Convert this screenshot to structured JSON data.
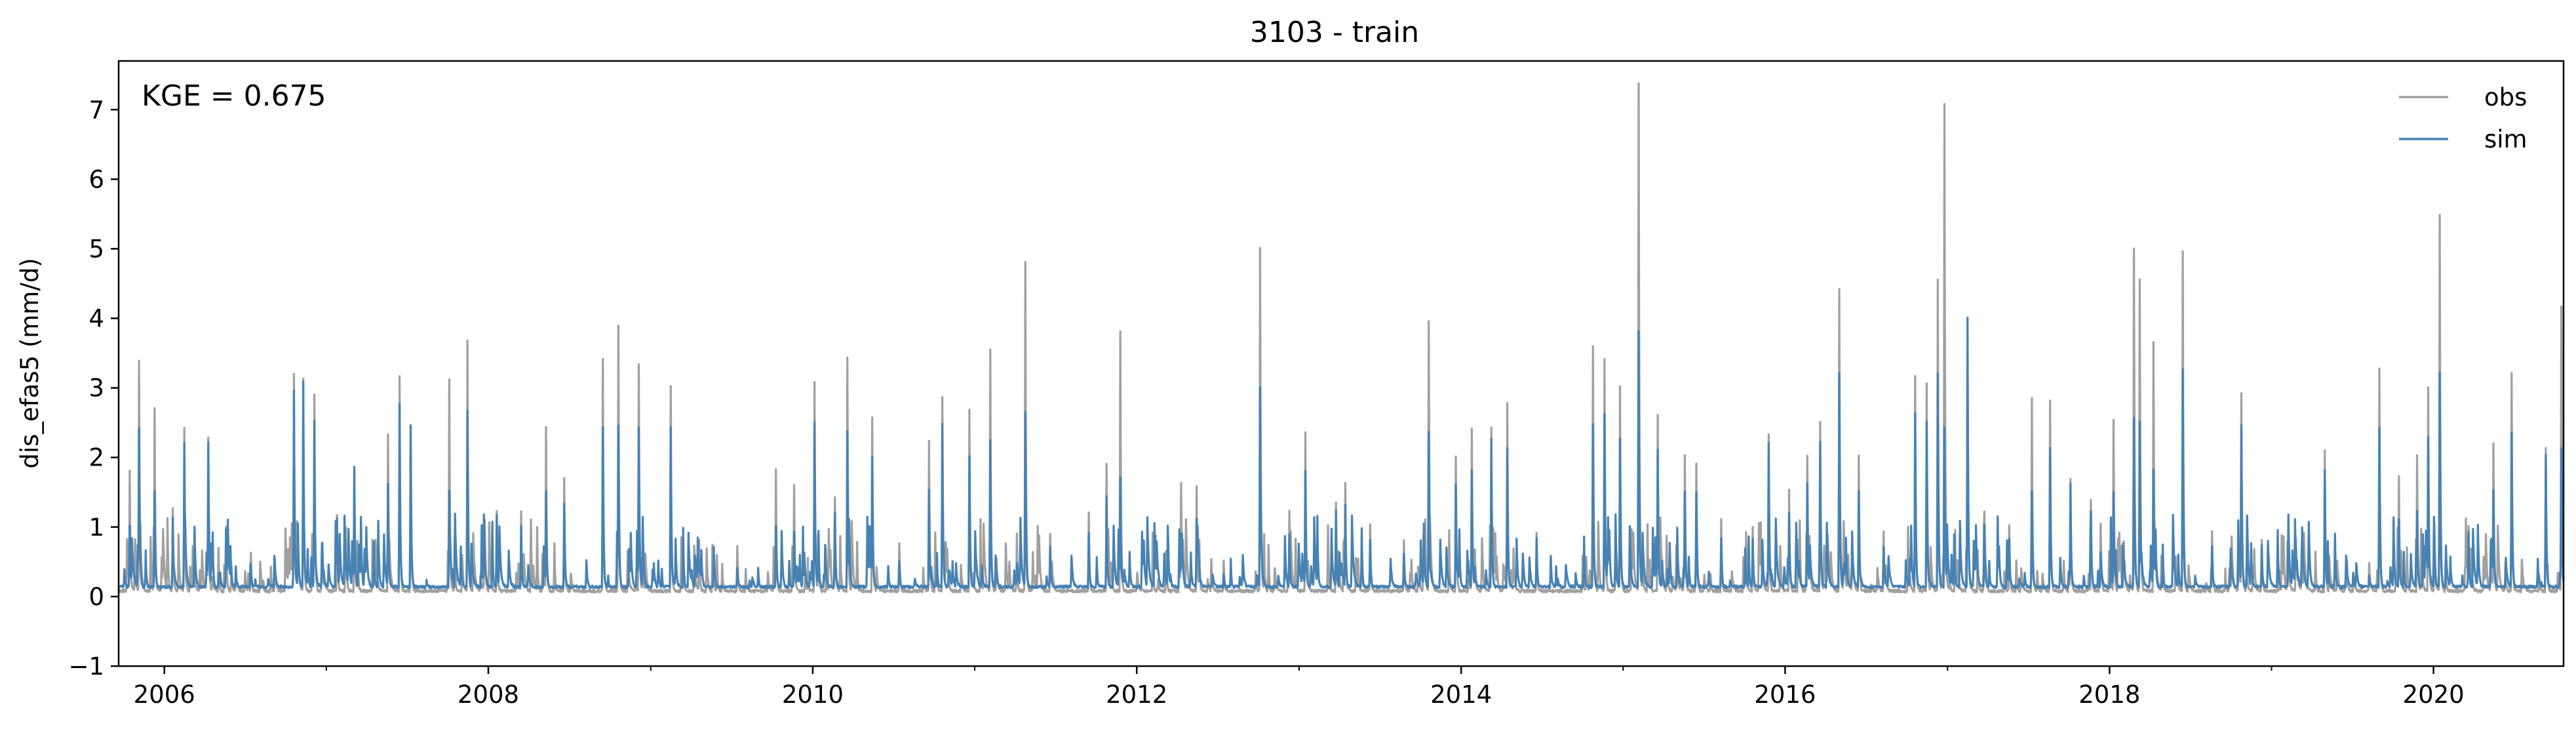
{
  "chart_data": {
    "type": "line",
    "title": "3103 - train",
    "xlabel": "",
    "ylabel": "dis_efas5 (mm/d)",
    "annotation": "KGE = 0.675",
    "xlim": [
      "2005-09-20",
      "2020-10-20"
    ],
    "ylim": [
      -1,
      7.7
    ],
    "x_ticks": [
      "2006",
      "2008",
      "2010",
      "2012",
      "2014",
      "2016",
      "2018",
      "2020"
    ],
    "y_ticks": [
      "−1",
      "0",
      "1",
      "2",
      "3",
      "4",
      "5",
      "6",
      "7"
    ],
    "legend": {
      "position": "top-right",
      "entries": [
        "obs",
        "sim"
      ]
    },
    "grid": false,
    "series": [
      {
        "name": "obs",
        "color": "#a0a0a0",
        "baseline": 0.06,
        "peaks": [
          [
            "2005-10-15",
            1.8
          ],
          [
            "2005-11-05",
            3.35
          ],
          [
            "2005-12-10",
            2.7
          ],
          [
            "2006-01-20",
            1.25
          ],
          [
            "2006-02-15",
            2.4
          ],
          [
            "2006-04-10",
            2.25
          ],
          [
            "2006-05-20",
            1.0
          ],
          [
            "2006-07-15",
            0.6
          ],
          [
            "2006-10-20",
            3.2
          ],
          [
            "2006-11-10",
            3.1
          ],
          [
            "2006-12-05",
            2.9
          ],
          [
            "2007-01-25",
            1.15
          ],
          [
            "2007-03-05",
            1.8
          ],
          [
            "2007-05-20",
            2.3
          ],
          [
            "2007-06-15",
            3.15
          ],
          [
            "2007-07-10",
            2.45
          ],
          [
            "2007-10-05",
            3.1
          ],
          [
            "2007-11-15",
            3.68
          ],
          [
            "2008-01-20",
            1.2
          ],
          [
            "2008-03-15",
            1.2
          ],
          [
            "2008-05-10",
            2.4
          ],
          [
            "2008-06-20",
            1.7
          ],
          [
            "2008-09-15",
            3.4
          ],
          [
            "2008-10-20",
            3.88
          ],
          [
            "2008-12-05",
            3.3
          ],
          [
            "2009-02-15",
            3.02
          ],
          [
            "2009-04-20",
            0.8
          ],
          [
            "2009-07-15",
            0.7
          ],
          [
            "2009-10-10",
            1.8
          ],
          [
            "2009-11-20",
            1.6
          ],
          [
            "2010-01-05",
            3.05
          ],
          [
            "2010-02-20",
            1.4
          ],
          [
            "2010-03-20",
            3.42
          ],
          [
            "2010-05-15",
            2.55
          ],
          [
            "2010-07-15",
            0.75
          ],
          [
            "2010-09-20",
            2.2
          ],
          [
            "2010-10-20",
            2.85
          ],
          [
            "2010-12-20",
            2.65
          ],
          [
            "2011-02-05",
            3.52
          ],
          [
            "2011-04-25",
            4.8
          ],
          [
            "2011-06-20",
            0.9
          ],
          [
            "2011-09-15",
            1.2
          ],
          [
            "2011-10-25",
            1.9
          ],
          [
            "2011-11-25",
            3.8
          ],
          [
            "2012-04-10",
            1.62
          ],
          [
            "2012-05-15",
            1.55
          ],
          [
            "2012-07-15",
            0.5
          ],
          [
            "2012-10-05",
            4.98
          ],
          [
            "2012-12-10",
            1.2
          ],
          [
            "2013-01-15",
            2.35
          ],
          [
            "2013-03-25",
            1.35
          ],
          [
            "2013-04-15",
            1.6
          ],
          [
            "2013-06-10",
            1.0
          ],
          [
            "2013-08-25",
            0.8
          ],
          [
            "2013-10-20",
            3.95
          ],
          [
            "2013-12-20",
            2.0
          ],
          [
            "2014-01-25",
            2.4
          ],
          [
            "2014-03-10",
            2.4
          ],
          [
            "2014-04-15",
            2.75
          ],
          [
            "2014-06-20",
            0.9
          ],
          [
            "2014-10-25",
            3.6
          ],
          [
            "2014-11-20",
            3.4
          ],
          [
            "2014-12-25",
            3.0
          ],
          [
            "2015-02-05",
            7.35
          ],
          [
            "2015-03-20",
            2.6
          ],
          [
            "2015-05-20",
            2.0
          ],
          [
            "2015-06-15",
            1.9
          ],
          [
            "2015-08-10",
            1.1
          ],
          [
            "2015-10-20",
            1.0
          ],
          [
            "2015-11-25",
            2.3
          ],
          [
            "2016-01-10",
            1.5
          ],
          [
            "2016-02-20",
            2.0
          ],
          [
            "2016-03-20",
            2.5
          ],
          [
            "2016-05-02",
            4.4
          ],
          [
            "2016-06-15",
            2.0
          ],
          [
            "2016-08-10",
            0.9
          ],
          [
            "2016-10-20",
            3.15
          ],
          [
            "2016-11-15",
            3.05
          ],
          [
            "2016-12-10",
            4.55
          ],
          [
            "2016-12-25",
            7.05
          ],
          [
            "2017-02-15",
            3.97
          ],
          [
            "2017-03-25",
            1.2
          ],
          [
            "2017-05-20",
            1.0
          ],
          [
            "2017-07-10",
            2.85
          ],
          [
            "2017-08-20",
            2.8
          ],
          [
            "2017-10-05",
            1.65
          ],
          [
            "2017-11-20",
            1.35
          ],
          [
            "2018-01-10",
            2.5
          ],
          [
            "2018-02-25",
            4.98
          ],
          [
            "2018-03-10",
            4.55
          ],
          [
            "2018-04-10",
            3.65
          ],
          [
            "2018-06-15",
            4.95
          ],
          [
            "2018-08-20",
            0.9
          ],
          [
            "2018-10-25",
            2.9
          ],
          [
            "2018-12-10",
            0.8
          ],
          [
            "2019-03-10",
            0.7
          ],
          [
            "2019-05-01",
            2.1
          ],
          [
            "2019-06-20",
            0.5
          ],
          [
            "2019-09-01",
            3.27
          ],
          [
            "2019-10-15",
            1.7
          ],
          [
            "2019-11-25",
            2.0
          ],
          [
            "2019-12-20",
            3.0
          ],
          [
            "2020-01-15",
            5.45
          ],
          [
            "2020-03-20",
            1.0
          ],
          [
            "2020-05-15",
            2.2
          ],
          [
            "2020-06-25",
            3.2
          ],
          [
            "2020-09-10",
            2.1
          ],
          [
            "2020-10-15",
            4.15
          ]
        ]
      },
      {
        "name": "sim",
        "color": "#4682b4",
        "baseline": 0.12,
        "peaks": [
          [
            "2005-10-15",
            1.0
          ],
          [
            "2005-11-05",
            2.4
          ],
          [
            "2005-12-10",
            1.5
          ],
          [
            "2006-01-20",
            1.1
          ],
          [
            "2006-02-15",
            2.2
          ],
          [
            "2006-04-10",
            2.2
          ],
          [
            "2006-05-20",
            0.95
          ],
          [
            "2006-07-15",
            0.4
          ],
          [
            "2006-10-20",
            2.95
          ],
          [
            "2006-11-10",
            3.05
          ],
          [
            "2006-12-05",
            2.5
          ],
          [
            "2007-01-25",
            1.1
          ],
          [
            "2007-03-05",
            1.85
          ],
          [
            "2007-05-20",
            1.6
          ],
          [
            "2007-06-15",
            2.75
          ],
          [
            "2007-07-10",
            2.45
          ],
          [
            "2007-10-05",
            1.5
          ],
          [
            "2007-11-15",
            2.65
          ],
          [
            "2008-01-20",
            1.15
          ],
          [
            "2008-03-15",
            1.0
          ],
          [
            "2008-05-10",
            1.5
          ],
          [
            "2008-06-20",
            1.3
          ],
          [
            "2008-09-15",
            2.4
          ],
          [
            "2008-10-20",
            2.45
          ],
          [
            "2008-12-05",
            2.4
          ],
          [
            "2009-02-15",
            2.4
          ],
          [
            "2009-04-20",
            0.5
          ],
          [
            "2009-07-15",
            0.4
          ],
          [
            "2009-10-10",
            1.0
          ],
          [
            "2009-11-20",
            0.9
          ],
          [
            "2010-01-05",
            2.5
          ],
          [
            "2010-02-20",
            1.2
          ],
          [
            "2010-03-20",
            2.35
          ],
          [
            "2010-05-15",
            2.0
          ],
          [
            "2010-07-15",
            0.5
          ],
          [
            "2010-09-20",
            1.5
          ],
          [
            "2010-10-20",
            2.45
          ],
          [
            "2010-12-20",
            2.0
          ],
          [
            "2011-02-05",
            2.25
          ],
          [
            "2011-04-25",
            2.65
          ],
          [
            "2011-06-20",
            0.7
          ],
          [
            "2011-09-15",
            0.9
          ],
          [
            "2011-10-25",
            1.4
          ],
          [
            "2011-11-25",
            1.7
          ],
          [
            "2012-04-10",
            0.9
          ],
          [
            "2012-05-15",
            1.1
          ],
          [
            "2012-07-15",
            0.3
          ],
          [
            "2012-10-05",
            3.0
          ],
          [
            "2012-12-10",
            0.9
          ],
          [
            "2013-01-15",
            1.8
          ],
          [
            "2013-03-25",
            1.2
          ],
          [
            "2013-04-15",
            1.3
          ],
          [
            "2013-06-10",
            0.8
          ],
          [
            "2013-08-25",
            0.6
          ],
          [
            "2013-10-20",
            2.35
          ],
          [
            "2013-12-20",
            1.6
          ],
          [
            "2014-01-25",
            1.8
          ],
          [
            "2014-03-10",
            2.25
          ],
          [
            "2014-04-15",
            2.1
          ],
          [
            "2014-06-20",
            0.8
          ],
          [
            "2014-10-25",
            2.45
          ],
          [
            "2014-11-20",
            2.6
          ],
          [
            "2014-12-25",
            2.25
          ],
          [
            "2015-02-05",
            3.8
          ],
          [
            "2015-03-20",
            2.1
          ],
          [
            "2015-05-20",
            1.5
          ],
          [
            "2015-06-15",
            1.5
          ],
          [
            "2015-08-10",
            0.8
          ],
          [
            "2015-10-20",
            0.8
          ],
          [
            "2015-11-25",
            2.2
          ],
          [
            "2016-01-10",
            1.2
          ],
          [
            "2016-02-20",
            1.6
          ],
          [
            "2016-03-20",
            2.2
          ],
          [
            "2016-05-02",
            3.2
          ],
          [
            "2016-06-15",
            1.5
          ],
          [
            "2016-08-10",
            0.7
          ],
          [
            "2016-10-20",
            2.6
          ],
          [
            "2016-11-15",
            2.5
          ],
          [
            "2016-12-10",
            3.2
          ],
          [
            "2016-12-25",
            2.4
          ],
          [
            "2017-02-15",
            3.97
          ],
          [
            "2017-03-25",
            1.0
          ],
          [
            "2017-05-20",
            0.8
          ],
          [
            "2017-07-10",
            1.5
          ],
          [
            "2017-08-20",
            2.1
          ],
          [
            "2017-10-05",
            1.6
          ],
          [
            "2017-11-20",
            1.2
          ],
          [
            "2018-01-10",
            1.5
          ],
          [
            "2018-02-25",
            2.55
          ],
          [
            "2018-03-10",
            2.5
          ],
          [
            "2018-04-10",
            1.8
          ],
          [
            "2018-06-15",
            3.25
          ],
          [
            "2018-08-20",
            0.7
          ],
          [
            "2018-10-25",
            2.45
          ],
          [
            "2018-12-10",
            0.7
          ],
          [
            "2019-03-10",
            0.6
          ],
          [
            "2019-05-01",
            1.8
          ],
          [
            "2019-06-20",
            0.4
          ],
          [
            "2019-09-01",
            2.4
          ],
          [
            "2019-10-15",
            1.1
          ],
          [
            "2019-11-25",
            1.2
          ],
          [
            "2019-12-20",
            2.25
          ],
          [
            "2020-01-15",
            3.2
          ],
          [
            "2020-03-20",
            0.9
          ],
          [
            "2020-05-15",
            1.5
          ],
          [
            "2020-06-25",
            2.35
          ],
          [
            "2020-09-10",
            2.0
          ],
          [
            "2020-10-15",
            2.1
          ]
        ]
      }
    ]
  }
}
